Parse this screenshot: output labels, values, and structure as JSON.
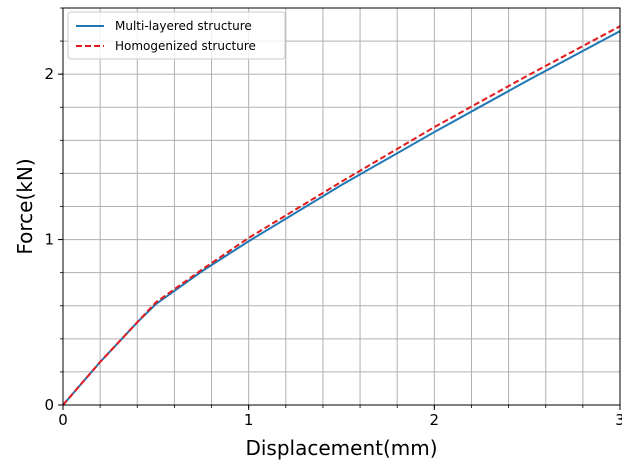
{
  "chart_data": {
    "type": "line",
    "xlabel": "Displacement(mm)",
    "ylabel": "Force(kN)",
    "xlim": [
      0,
      3
    ],
    "ylim": [
      0,
      2.4
    ],
    "x_ticks": [
      0,
      1,
      2,
      3
    ],
    "x_tick_labels": [
      "0",
      "1",
      "2",
      "3"
    ],
    "y_ticks": [
      0,
      1,
      2
    ],
    "y_tick_labels": [
      "0",
      "1",
      "2"
    ],
    "grid": true,
    "minor_grid": true,
    "legend_position": "top-left",
    "series": [
      {
        "name": "Multi-layered structure",
        "color": "#1f77b4",
        "style": "solid",
        "x": [
          0,
          0.1,
          0.2,
          0.3,
          0.4,
          0.5,
          0.75,
          1.0,
          1.5,
          2.0,
          2.5,
          3.0
        ],
        "y": [
          0,
          0.13,
          0.26,
          0.38,
          0.5,
          0.61,
          0.81,
          0.99,
          1.33,
          1.65,
          1.96,
          2.26
        ]
      },
      {
        "name": "Homogenized structure",
        "color": "#e31a1c",
        "style": "dashed",
        "x": [
          0,
          0.1,
          0.2,
          0.3,
          0.4,
          0.5,
          0.75,
          1.0,
          1.5,
          2.0,
          2.5,
          3.0
        ],
        "y": [
          0,
          0.13,
          0.26,
          0.38,
          0.5,
          0.62,
          0.82,
          1.01,
          1.35,
          1.68,
          1.99,
          2.29
        ]
      }
    ]
  }
}
